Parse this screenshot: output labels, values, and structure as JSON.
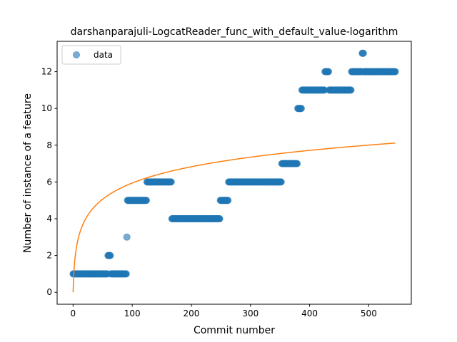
{
  "chart_data": {
    "type": "scatter",
    "title": "darshanparajuli-LogcatReader_func_with_default_value-logarithm",
    "xlabel": "Commit number",
    "ylabel": "Number of instance of a feature",
    "xlim": [
      -27,
      572
    ],
    "ylim": [
      -0.65,
      13.65
    ],
    "xticks": [
      0,
      100,
      200,
      300,
      400,
      500
    ],
    "yticks": [
      0,
      2,
      4,
      6,
      8,
      10,
      12
    ],
    "grid": false,
    "legend": {
      "position": "top-left",
      "entries": [
        "data"
      ]
    },
    "series": [
      {
        "name": "data",
        "kind": "scatter",
        "color": "#1f77b4",
        "segments": [
          {
            "x_start": 0,
            "x_end": 58,
            "y": 1
          },
          {
            "x_start": 59,
            "x_end": 63,
            "y": 2
          },
          {
            "x_start": 64,
            "x_end": 90,
            "y": 1
          },
          {
            "x_start": 91,
            "x_end": 91,
            "y": 3
          },
          {
            "x_start": 92,
            "x_end": 124,
            "y": 5
          },
          {
            "x_start": 125,
            "x_end": 166,
            "y": 6
          },
          {
            "x_start": 167,
            "x_end": 248,
            "y": 4
          },
          {
            "x_start": 249,
            "x_end": 262,
            "y": 5
          },
          {
            "x_start": 263,
            "x_end": 352,
            "y": 6
          },
          {
            "x_start": 353,
            "x_end": 379,
            "y": 7
          },
          {
            "x_start": 380,
            "x_end": 386,
            "y": 10
          },
          {
            "x_start": 387,
            "x_end": 425,
            "y": 11
          },
          {
            "x_start": 426,
            "x_end": 432,
            "y": 12
          },
          {
            "x_start": 433,
            "x_end": 470,
            "y": 11
          },
          {
            "x_start": 471,
            "x_end": 488,
            "y": 12
          },
          {
            "x_start": 489,
            "x_end": 491,
            "y": 13
          },
          {
            "x_start": 492,
            "x_end": 545,
            "y": 12
          }
        ]
      },
      {
        "kind": "line",
        "color": "#ff7f0e",
        "function": "a*ln(x+1)",
        "a": 1.2877,
        "x_range": [
          0,
          545
        ]
      }
    ]
  }
}
